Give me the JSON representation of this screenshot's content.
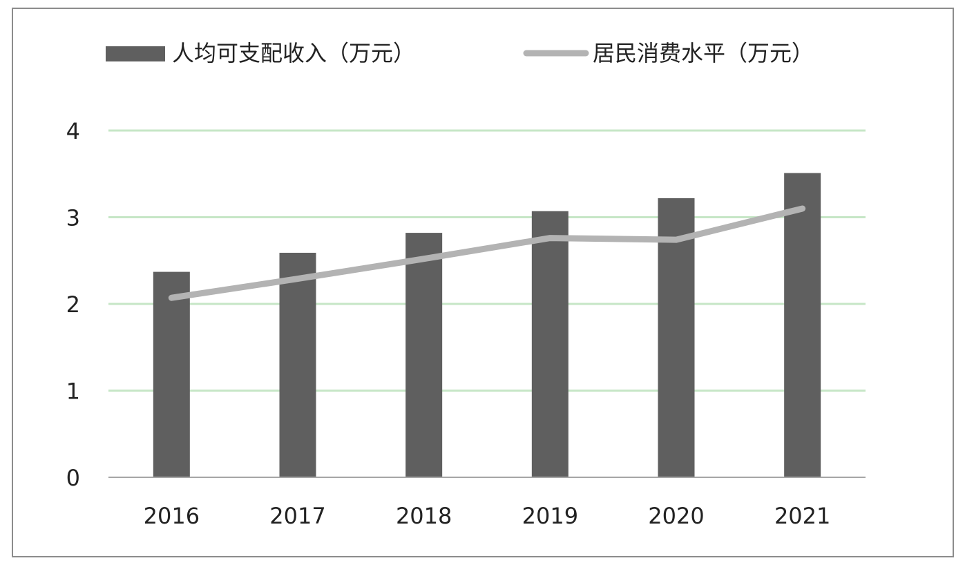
{
  "chart_data": {
    "type": "bar",
    "categories": [
      "2016",
      "2017",
      "2018",
      "2019",
      "2020",
      "2021"
    ],
    "series": [
      {
        "name": "人均可支配收入（万元）",
        "type": "bar",
        "values": [
          2.37,
          2.59,
          2.82,
          3.07,
          3.22,
          3.51
        ],
        "color": "#5f5f5f"
      },
      {
        "name": "居民消费水平（万元）",
        "type": "line",
        "values": [
          2.07,
          2.29,
          2.52,
          2.76,
          2.74,
          3.1
        ],
        "color": "#b3b3b3"
      }
    ],
    "ylim": [
      0,
      4
    ],
    "yticks": [
      "0",
      "1",
      "2",
      "3",
      "4"
    ],
    "grid": true,
    "grid_color": "#c6e6c6",
    "legend_position": "top-left"
  }
}
